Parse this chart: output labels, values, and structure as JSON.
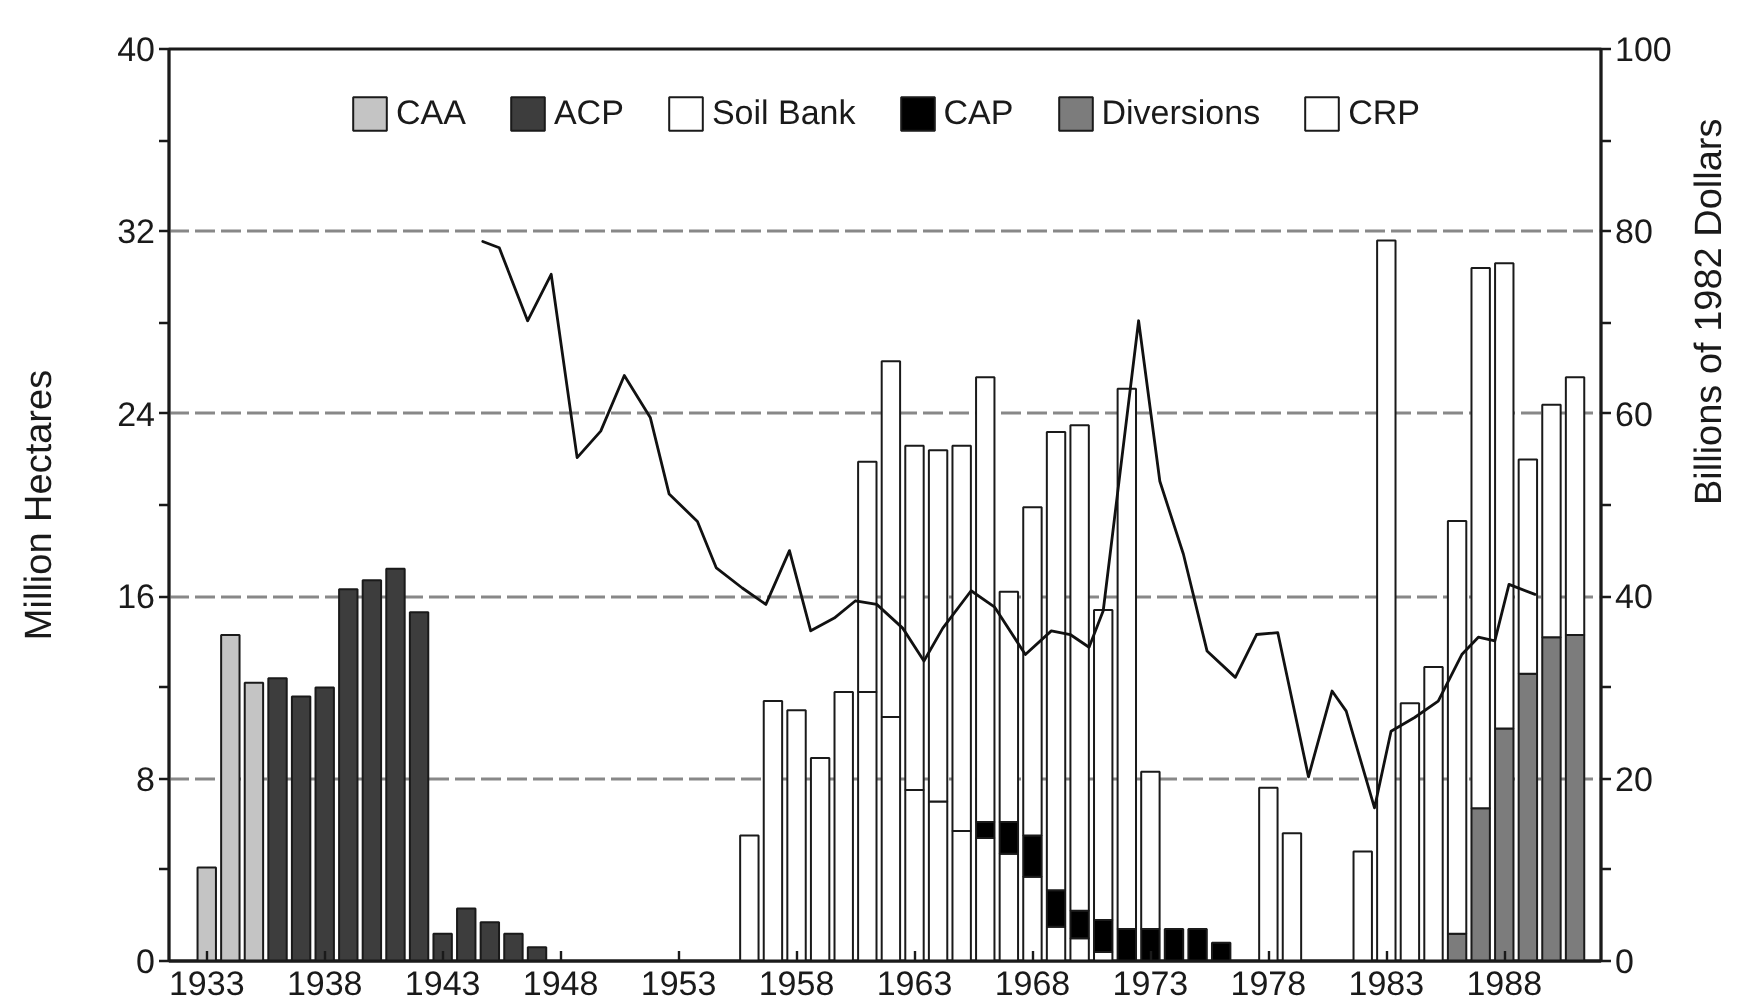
{
  "chart_data": {
    "type": "bar",
    "stacked": true,
    "ylabel": "Million Hectares",
    "y2label": "Billions of 1982 Dollars",
    "x": [
      1933,
      1934,
      1935,
      1936,
      1937,
      1938,
      1939,
      1940,
      1941,
      1942,
      1943,
      1944,
      1945,
      1946,
      1947,
      1948,
      1949,
      1950,
      1951,
      1952,
      1953,
      1954,
      1955,
      1956,
      1957,
      1958,
      1959,
      1960,
      1961,
      1962,
      1963,
      1964,
      1965,
      1966,
      1967,
      1968,
      1969,
      1970,
      1971,
      1972,
      1973,
      1974,
      1975,
      1976,
      1977,
      1978,
      1979,
      1980,
      1981,
      1982,
      1983,
      1984,
      1985,
      1986,
      1987,
      1988,
      1989,
      1990,
      1991
    ],
    "xlim": [
      1931.4,
      1992.1
    ],
    "xticks": [
      1933,
      1938,
      1943,
      1948,
      1953,
      1958,
      1963,
      1968,
      1973,
      1978,
      1983,
      1988
    ],
    "ylim": [
      0,
      40
    ],
    "yticks": [
      0,
      {
        "value": 4,
        "label": null
      },
      8,
      {
        "value": 12,
        "label": null
      },
      16,
      {
        "value": 20,
        "label": null
      },
      24,
      {
        "value": 28,
        "label": null
      },
      32,
      {
        "value": 36,
        "label": null
      },
      40
    ],
    "y2lim": [
      0,
      100
    ],
    "y2ticks": [
      0,
      {
        "value": 10,
        "label": null
      },
      20,
      {
        "value": 30,
        "label": null
      },
      40,
      {
        "value": 50,
        "label": null
      },
      60,
      {
        "value": 70,
        "label": null
      },
      80,
      {
        "value": 90,
        "label": null
      },
      100
    ],
    "grid": "y",
    "legend": "top",
    "series": [
      {
        "name": "CAA",
        "color": "#c4c4c4",
        "values": [
          4.1,
          14.3,
          12.2,
          null,
          null,
          null,
          null,
          null,
          null,
          null,
          null,
          null,
          null,
          null,
          null,
          null,
          null,
          null,
          null,
          null,
          null,
          null,
          null,
          null,
          null,
          null,
          null,
          null,
          null,
          null,
          null,
          null,
          null,
          null,
          null,
          null,
          null,
          null,
          null,
          null,
          null,
          null,
          null,
          null,
          null,
          null,
          null,
          null,
          null,
          null,
          null,
          null,
          null,
          null,
          null,
          null,
          null,
          null,
          null
        ]
      },
      {
        "name": "ACP",
        "color": "#3d3d3d",
        "values": [
          null,
          null,
          null,
          12.4,
          11.6,
          12.0,
          16.3,
          16.7,
          17.2,
          15.3,
          1.2,
          2.3,
          1.7,
          1.2,
          0.6,
          null,
          null,
          null,
          null,
          null,
          null,
          null,
          null,
          null,
          null,
          null,
          null,
          null,
          null,
          null,
          null,
          null,
          null,
          null,
          null,
          null,
          null,
          null,
          null,
          null,
          null,
          null,
          null,
          null,
          null,
          null,
          null,
          null,
          null,
          null,
          null,
          null,
          null,
          null,
          null,
          null,
          null,
          null,
          null
        ]
      },
      {
        "name": "Soil Bank",
        "color": "#ffffff",
        "values": [
          null,
          null,
          null,
          null,
          null,
          null,
          null,
          null,
          null,
          null,
          null,
          null,
          null,
          null,
          null,
          null,
          null,
          null,
          null,
          null,
          null,
          null,
          null,
          5.5,
          11.4,
          11.0,
          8.9,
          11.8,
          11.8,
          10.7,
          7.5,
          7.0,
          5.7,
          5.4,
          4.7,
          3.7,
          1.5,
          1.0,
          0.4,
          null,
          null,
          null,
          null,
          null,
          null,
          null,
          null,
          null,
          null,
          null,
          null,
          null,
          null,
          null,
          null,
          null,
          null,
          null,
          null
        ]
      },
      {
        "name": "CAP",
        "color": "#000000",
        "values": [
          null,
          null,
          null,
          null,
          null,
          null,
          null,
          null,
          null,
          null,
          null,
          null,
          null,
          null,
          null,
          null,
          null,
          null,
          null,
          null,
          null,
          null,
          null,
          null,
          null,
          null,
          null,
          null,
          null,
          null,
          null,
          null,
          null,
          0.7,
          1.4,
          1.8,
          1.6,
          1.2,
          1.4,
          1.4,
          1.4,
          1.4,
          1.4,
          0.8,
          null,
          null,
          null,
          null,
          null,
          null,
          null,
          null,
          null,
          null,
          null,
          null,
          null,
          null,
          null
        ]
      },
      {
        "name": "Diversions",
        "color": "#7c7c7c",
        "values": [
          null,
          null,
          null,
          null,
          null,
          null,
          null,
          null,
          null,
          null,
          null,
          null,
          null,
          null,
          null,
          null,
          null,
          null,
          null,
          null,
          null,
          null,
          null,
          null,
          null,
          null,
          null,
          null,
          null,
          null,
          null,
          null,
          null,
          null,
          null,
          null,
          null,
          null,
          null,
          null,
          null,
          null,
          null,
          null,
          null,
          null,
          null,
          null,
          null,
          null,
          null,
          null,
          null,
          1.2,
          6.7,
          10.2,
          12.6,
          14.2,
          14.3
        ]
      },
      {
        "name": "CRP",
        "color": "#ffffff",
        "values": [
          null,
          null,
          null,
          null,
          null,
          null,
          null,
          null,
          null,
          null,
          null,
          null,
          null,
          null,
          null,
          null,
          null,
          null,
          null,
          null,
          null,
          null,
          null,
          null,
          null,
          null,
          null,
          null,
          10.1,
          15.6,
          15.1,
          15.4,
          16.9,
          19.5,
          10.1,
          14.4,
          20.1,
          21.3,
          13.6,
          23.7,
          6.9,
          null,
          null,
          null,
          null,
          7.6,
          5.6,
          null,
          null,
          4.8,
          31.6,
          11.3,
          12.9,
          18.1,
          23.7,
          20.4,
          9.4,
          10.2,
          11.3
        ]
      },
      {
        "type": "line",
        "axis": "y2",
        "color": "#111111",
        "x": [
          1944.7,
          1945.4,
          1946.6,
          1947.6,
          1948.7,
          1949.7,
          1950.7,
          1951.8,
          1952.6,
          1953.8,
          1954.6,
          1955.7,
          1956.7,
          1957.7,
          1958.6,
          1959.6,
          1960.5,
          1961.4,
          1962.5,
          1963.4,
          1964.2,
          1965.4,
          1966.4,
          1967.7,
          1968.8,
          1969.6,
          1970.4,
          1971.0,
          1972.5,
          1973.4,
          1974.4,
          1975.4,
          1976.6,
          1977.5,
          1978.4,
          1979.7,
          1980.7,
          1981.3,
          1982.5,
          1983.2,
          1984.2,
          1985.2,
          1986.2,
          1986.9,
          1987.6,
          1988.2,
          1989.3
        ],
        "values": [
          78.9,
          78.2,
          70.2,
          75.3,
          55.2,
          58.1,
          64.2,
          59.6,
          51.2,
          48.2,
          43.1,
          40.9,
          39.1,
          45.0,
          36.2,
          37.6,
          39.5,
          39.1,
          36.5,
          32.9,
          36.5,
          40.6,
          38.8,
          33.6,
          36.2,
          35.8,
          34.4,
          38.4,
          70.2,
          52.6,
          44.6,
          34.0,
          31.1,
          35.8,
          36.0,
          20.2,
          29.6,
          27.4,
          16.8,
          25.2,
          26.7,
          28.5,
          33.6,
          35.5,
          35.1,
          41.3,
          40.2
        ]
      }
    ]
  }
}
